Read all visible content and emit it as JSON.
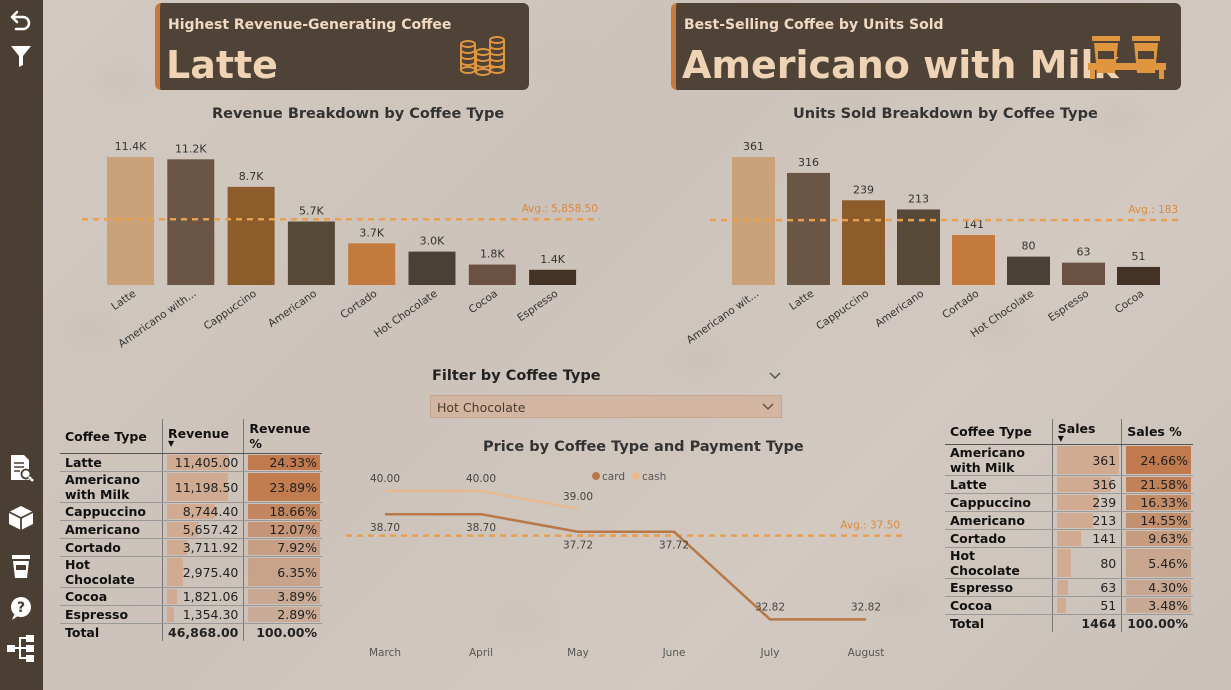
{
  "colors": {
    "sidebar": "#4b3e32",
    "card_bg": "#4f4337",
    "card_accent": "#c77a3a",
    "avg_line": "#e8a04e",
    "bar_palette": [
      "#c9a27a",
      "#6b5545",
      "#8c5d2a",
      "#574938",
      "#c47a3c",
      "#4a4036",
      "#6b5044",
      "#453226"
    ],
    "card_line": "#b87848",
    "cash_line": "#e8b98e"
  },
  "sidebar": {
    "icons": [
      "back-icon",
      "filter-icon",
      "report-search-icon",
      "box-icon",
      "coffee-cup-icon",
      "help-icon",
      "hierarchy-icon"
    ]
  },
  "kpi_revenue": {
    "title": "Highest Revenue-Generating Coffee",
    "value": "Latte",
    "icon": "coins-icon"
  },
  "kpi_units": {
    "title": "Best-Selling Coffee by Units Sold",
    "value": "Americano with Milk",
    "icon": "coffee-cups-icon"
  },
  "filter": {
    "title": "Filter by Coffee Type",
    "selected": "Hot Chocolate"
  },
  "revenue_table": {
    "headers": [
      "Coffee Type",
      "Revenue",
      "Revenue %"
    ],
    "rows": [
      {
        "name": "Latte",
        "value": "11,405.00",
        "pct": "24.33%",
        "v": 11405,
        "p": 24.33
      },
      {
        "name": "Americano with Milk",
        "value": "11,198.50",
        "pct": "23.89%",
        "v": 11198.5,
        "p": 23.89
      },
      {
        "name": "Cappuccino",
        "value": "8,744.40",
        "pct": "18.66%",
        "v": 8744.4,
        "p": 18.66
      },
      {
        "name": "Americano",
        "value": "5,657.42",
        "pct": "12.07%",
        "v": 5657.42,
        "p": 12.07
      },
      {
        "name": "Cortado",
        "value": "3,711.92",
        "pct": "7.92%",
        "v": 3711.92,
        "p": 7.92
      },
      {
        "name": "Hot Chocolate",
        "value": "2,975.40",
        "pct": "6.35%",
        "v": 2975.4,
        "p": 6.35
      },
      {
        "name": "Cocoa",
        "value": "1,821.06",
        "pct": "3.89%",
        "v": 1821.06,
        "p": 3.89
      },
      {
        "name": "Espresso",
        "value": "1,354.30",
        "pct": "2.89%",
        "v": 1354.3,
        "p": 2.89
      }
    ],
    "total": {
      "label": "Total",
      "value": "46,868.00",
      "pct": "100.00%"
    }
  },
  "sales_table": {
    "headers": [
      "Coffee Type",
      "Sales",
      "Sales %"
    ],
    "rows": [
      {
        "name": "Americano with Milk",
        "value": "361",
        "pct": "24.66%",
        "v": 361,
        "p": 24.66
      },
      {
        "name": "Latte",
        "value": "316",
        "pct": "21.58%",
        "v": 316,
        "p": 21.58
      },
      {
        "name": "Cappuccino",
        "value": "239",
        "pct": "16.33%",
        "v": 239,
        "p": 16.33
      },
      {
        "name": "Americano",
        "value": "213",
        "pct": "14.55%",
        "v": 213,
        "p": 14.55
      },
      {
        "name": "Cortado",
        "value": "141",
        "pct": "9.63%",
        "v": 141,
        "p": 9.63
      },
      {
        "name": "Hot Chocolate",
        "value": "80",
        "pct": "5.46%",
        "v": 80,
        "p": 5.46
      },
      {
        "name": "Espresso",
        "value": "63",
        "pct": "4.30%",
        "v": 63,
        "p": 4.3
      },
      {
        "name": "Cocoa",
        "value": "51",
        "pct": "3.48%",
        "v": 51,
        "p": 3.48
      }
    ],
    "total": {
      "label": "Total",
      "value": "1464",
      "pct": "100.00%"
    }
  },
  "chart_data": [
    {
      "type": "bar",
      "title": "Revenue Breakdown by Coffee Type",
      "categories": [
        "Latte",
        "Americano with Milk",
        "Cappuccino",
        "Americano",
        "Cortado",
        "Hot Chocolate",
        "Cocoa",
        "Espresso"
      ],
      "tick_labels": [
        "Latte",
        "Americano with...",
        "Cappuccino",
        "Americano",
        "Cortado",
        "Hot Chocolate",
        "Cocoa",
        "Espresso"
      ],
      "values": [
        11405,
        11198.5,
        8744.4,
        5657.42,
        3711.92,
        2975.4,
        1821.06,
        1354.3
      ],
      "data_labels": [
        "11.4K",
        "11.2K",
        "8.7K",
        "5.7K",
        "3.7K",
        "3.0K",
        "1.8K",
        "1.4K"
      ],
      "average": 5858.5,
      "average_label": "Avg.: 5,858.50",
      "ylim": [
        0,
        11405
      ],
      "grid": false
    },
    {
      "type": "bar",
      "title": "Units Sold Breakdown by Coffee Type",
      "categories": [
        "Americano with Milk",
        "Latte",
        "Cappuccino",
        "Americano",
        "Cortado",
        "Hot Chocolate",
        "Espresso",
        "Cocoa"
      ],
      "tick_labels": [
        "Americano wit...",
        "Latte",
        "Cappuccino",
        "Americano",
        "Cortado",
        "Hot Chocolate",
        "Espresso",
        "Cocoa"
      ],
      "values": [
        361,
        316,
        239,
        213,
        141,
        80,
        63,
        51
      ],
      "data_labels": [
        "361",
        "316",
        "239",
        "213",
        "141",
        "80",
        "63",
        "51"
      ],
      "average": 183,
      "average_label": "Avg.: 183",
      "ylim": [
        0,
        361
      ],
      "grid": false
    },
    {
      "type": "line",
      "title": "Price by Coffee Type and Payment Type",
      "x": [
        "March",
        "April",
        "May",
        "June",
        "July",
        "August"
      ],
      "series": [
        {
          "name": "card",
          "values": [
            38.7,
            38.7,
            37.72,
            37.72,
            32.82,
            32.82
          ],
          "labels": [
            "38.70",
            "38.70",
            "37.72",
            "37.72",
            "32.82",
            "32.82"
          ]
        },
        {
          "name": "cash",
          "values": [
            40.0,
            40.0,
            39.0,
            null,
            null,
            null
          ],
          "labels": [
            "40.00",
            "40.00",
            "39.00",
            "",
            "",
            ""
          ]
        }
      ],
      "average": 37.5,
      "average_label": "Avg.: 37.50",
      "legend": "top-center",
      "ylim": [
        32,
        40.5
      ],
      "grid": false
    }
  ]
}
